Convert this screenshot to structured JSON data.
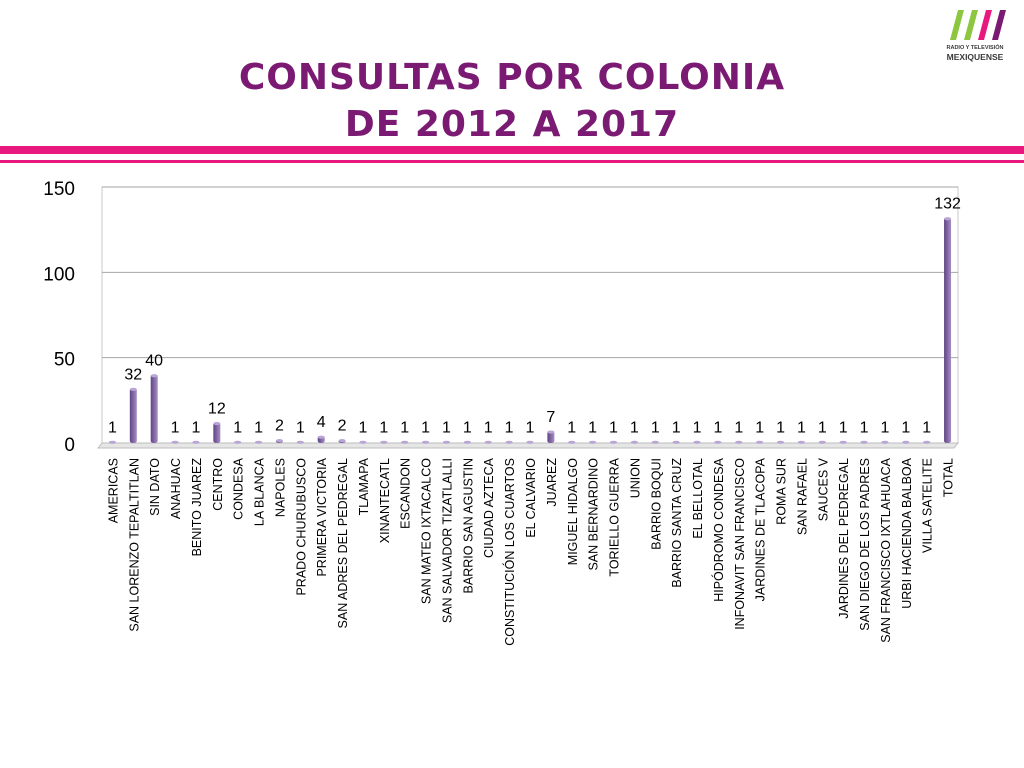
{
  "slide": {
    "title_line1": "CONSULTAS POR COLONIA",
    "title_line2": "DE 2012 A 2017",
    "logo_line1": "RADIO Y TELEVISIÓN",
    "logo_line2": "MEXIQUENSE",
    "logo_colors": [
      "#8dc63f",
      "#e8197e",
      "#7b1a72"
    ],
    "accent_color": "#e8197e",
    "title_color": "#7b1a72"
  },
  "chart_data": {
    "type": "bar",
    "title": "",
    "xlabel": "",
    "ylabel": "",
    "ylim": [
      0,
      150
    ],
    "yticks": [
      0,
      50,
      100,
      150
    ],
    "grid": true,
    "bar_color": "#8064a2",
    "data_labels": true,
    "categories": [
      "AMERICAS",
      "SAN LORENZO TEPALTITLAN",
      "SIN DATO",
      "ANAHUAC",
      "BENITO JUAREZ",
      "CENTRO",
      "CONDESA",
      "LA BLANCA",
      "NAPOLES",
      "PRADO CHURUBUSCO",
      "PRIMERA VICTORIA",
      "SAN ADRES DEL PEDREGAL",
      "TLAMAPA",
      "XINANTECATL",
      "ESCANDON",
      "SAN MATEO IXTACALCO",
      "SAN SALVADOR TIZATLALLI",
      "BARRIO SAN AGUSTIN",
      "CIUDAD AZTECA",
      "CONSTITUCIÓN LOS CUARTOS",
      "EL CALVARIO",
      "JUAREZ",
      "MIGUEL HIDALGO",
      "SAN BERNARDINO",
      "TORIELLO GUERRA",
      "UNION",
      "BARRIO BOQUI",
      "BARRIO SANTA CRUZ",
      "EL BELLOTAL",
      "HIPÓDROMO CONDESA",
      "INFONAVIT SAN FRANCISCO",
      "JARDINES DE TLACOPA",
      "ROMA SUR",
      "SAN RAFAEL",
      "SAUCES V",
      "JARDINES DEL PEDREGAL",
      "SAN DIEGO DE LOS PADRES",
      "SAN FRANCISCO IXTLAHUACA",
      "URBI HACIENDA BALBOA",
      "VILLA SATELITE",
      "TOTAL"
    ],
    "values": [
      1,
      32,
      40,
      1,
      1,
      12,
      1,
      1,
      2,
      1,
      4,
      2,
      1,
      1,
      1,
      1,
      1,
      1,
      1,
      1,
      1,
      7,
      1,
      1,
      1,
      1,
      1,
      1,
      1,
      1,
      1,
      1,
      1,
      1,
      1,
      1,
      1,
      1,
      1,
      1,
      132
    ]
  }
}
